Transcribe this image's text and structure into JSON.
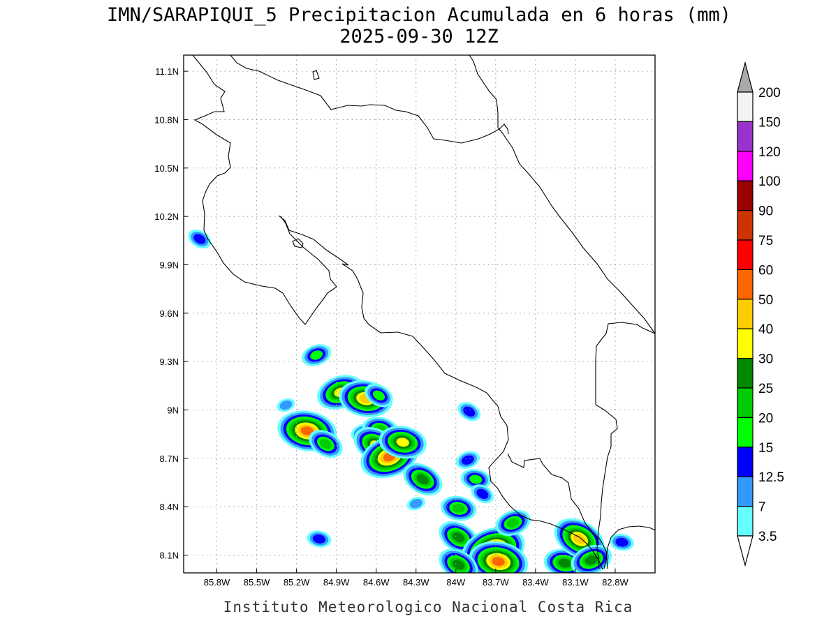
{
  "title": {
    "line1": "IMN/SARAPIQUI_5 Precipitacion Acumulada en 6 horas (mm)",
    "line2": "2025-09-30 12Z"
  },
  "credit": "Instituto Meteorologico Nacional Costa Rica",
  "map": {
    "lon_range": [
      -86.05,
      -82.5
    ],
    "lat_range": [
      7.99,
      11.2
    ],
    "lon_ticks": [
      "85.8W",
      "85.5W",
      "85.2W",
      "84.9W",
      "84.6W",
      "84.3W",
      "84W",
      "83.7W",
      "83.4W",
      "83.1W",
      "82.8W"
    ],
    "lon_tick_values": [
      -85.8,
      -85.5,
      -85.2,
      -84.9,
      -84.6,
      -84.3,
      -84.0,
      -83.7,
      -83.4,
      -83.1,
      -82.8
    ],
    "lat_ticks": [
      "8.1N",
      "8.4N",
      "8.7N",
      "9N",
      "9.3N",
      "9.6N",
      "9.9N",
      "10.2N",
      "10.5N",
      "10.8N",
      "11.1N"
    ],
    "lat_tick_values": [
      8.1,
      8.4,
      8.7,
      9.0,
      9.3,
      9.6,
      9.9,
      10.2,
      10.5,
      10.8,
      11.1
    ],
    "grid": true,
    "grid_style": "dotted"
  },
  "colorbar": {
    "placement": "right",
    "levels": [
      "3.5",
      "7",
      "12.5",
      "15",
      "20",
      "25",
      "30",
      "40",
      "50",
      "60",
      "75",
      "90",
      "100",
      "120",
      "150",
      "200"
    ],
    "colors": [
      "#66ffff",
      "#3399ff",
      "#0000ff",
      "#00ff00",
      "#00cc00",
      "#008800",
      "#ffff00",
      "#ffcc00",
      "#ff6600",
      "#ff0000",
      "#cc3300",
      "#990000",
      "#ff00ff",
      "#9933cc",
      "#f2f2f2"
    ],
    "under_color": "#ffffff",
    "over_color": "#aaaaaa"
  },
  "precip_palette": [
    "#66ffff",
    "#3399ff",
    "#0000ff",
    "#00ff00",
    "#00cc00",
    "#008800",
    "#ffff00",
    "#ffcc00",
    "#ff6600",
    "#ff0000"
  ],
  "precip_cells": [
    {
      "lon": -85.93,
      "lat": 10.06,
      "peak": 3
    },
    {
      "lon": -85.05,
      "lat": 9.34,
      "peak": 4
    },
    {
      "lon": -85.12,
      "lat": 8.87,
      "peak": 9
    },
    {
      "lon": -84.98,
      "lat": 8.79,
      "peak": 5
    },
    {
      "lon": -84.87,
      "lat": 9.11,
      "peak": 7
    },
    {
      "lon": -84.68,
      "lat": 9.07,
      "peak": 8
    },
    {
      "lon": -84.58,
      "lat": 9.09,
      "peak": 4
    },
    {
      "lon": -84.7,
      "lat": 8.86,
      "peak": 3
    },
    {
      "lon": -84.57,
      "lat": 8.88,
      "peak": 5
    },
    {
      "lon": -84.6,
      "lat": 8.78,
      "peak": 7
    },
    {
      "lon": -84.5,
      "lat": 8.71,
      "peak": 9
    },
    {
      "lon": -84.4,
      "lat": 8.8,
      "peak": 7
    },
    {
      "lon": -84.25,
      "lat": 8.57,
      "peak": 6
    },
    {
      "lon": -84.3,
      "lat": 8.42,
      "peak": 2
    },
    {
      "lon": -83.98,
      "lat": 8.39,
      "peak": 5
    },
    {
      "lon": -83.98,
      "lat": 8.21,
      "peak": 6
    },
    {
      "lon": -83.72,
      "lat": 8.13,
      "peak": 10
    },
    {
      "lon": -83.68,
      "lat": 8.06,
      "peak": 9
    },
    {
      "lon": -83.98,
      "lat": 8.04,
      "peak": 6
    },
    {
      "lon": -83.57,
      "lat": 8.3,
      "peak": 5
    },
    {
      "lon": -83.18,
      "lat": 8.05,
      "peak": 6
    },
    {
      "lon": -83.07,
      "lat": 8.2,
      "peak": 8
    },
    {
      "lon": -82.98,
      "lat": 8.07,
      "peak": 6
    },
    {
      "lon": -82.75,
      "lat": 8.18,
      "peak": 3
    },
    {
      "lon": -83.9,
      "lat": 8.99,
      "peak": 3
    },
    {
      "lon": -83.91,
      "lat": 8.69,
      "peak": 3
    },
    {
      "lon": -83.85,
      "lat": 8.57,
      "peak": 4
    },
    {
      "lon": -83.8,
      "lat": 8.48,
      "peak": 3
    },
    {
      "lon": -85.28,
      "lat": 9.03,
      "peak": 2
    },
    {
      "lon": -85.03,
      "lat": 8.2,
      "peak": 3
    }
  ],
  "icons": {
    "over_arrow": "triangle-up",
    "under_arrow": "triangle-down"
  }
}
